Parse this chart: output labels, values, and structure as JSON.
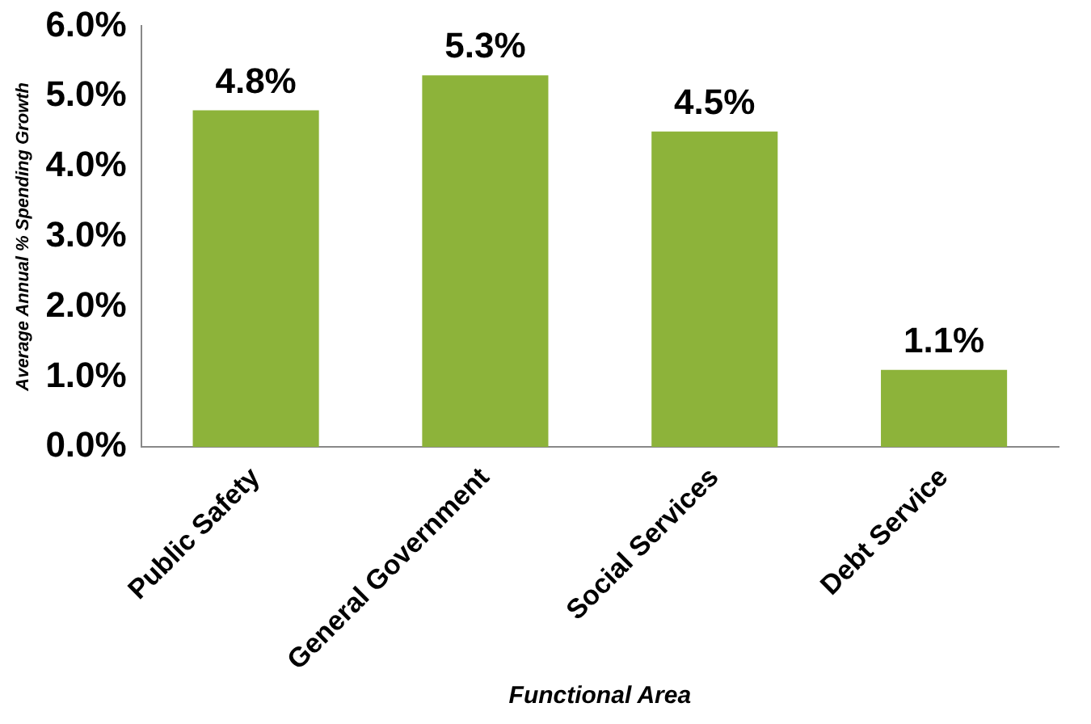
{
  "chart_data": {
    "type": "bar",
    "xlabel": "Functional Area",
    "ylabel": "Average Annual % Spending Growth",
    "categories": [
      "Public Safety",
      "General Government",
      "Social Services",
      "Debt Service"
    ],
    "values": [
      4.8,
      5.3,
      4.5,
      1.1
    ],
    "value_labels": [
      "4.8%",
      "5.3%",
      "4.5%",
      "1.1%"
    ],
    "color": "#8db33a",
    "ylim": [
      0,
      6
    ],
    "yticks": [
      {
        "value": 0,
        "label": "0.0%"
      },
      {
        "value": 1,
        "label": "1.0%"
      },
      {
        "value": 2,
        "label": "2.0%"
      },
      {
        "value": 3,
        "label": "3.0%"
      },
      {
        "value": 4,
        "label": "4.0%"
      },
      {
        "value": 5,
        "label": "5.0%"
      },
      {
        "value": 6,
        "label": "6.0%"
      }
    ],
    "grid": false,
    "legend": false
  }
}
